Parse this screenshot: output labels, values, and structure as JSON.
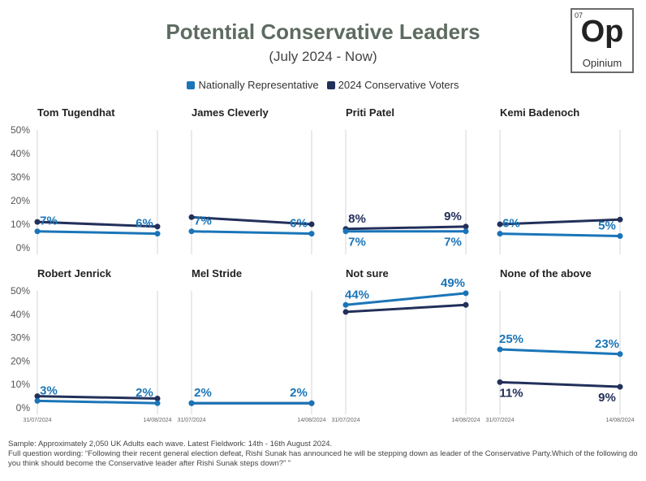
{
  "title": "Potential Conservative Leaders",
  "subtitle": "(July 2024 - Now)",
  "logo": {
    "number": "07",
    "symbol": "Op",
    "name": "Opinium"
  },
  "legend": [
    {
      "label": "Nationally Representative",
      "color": "#1a75b8"
    },
    {
      "label": "2024 Conservative Voters",
      "color": "#22305a"
    }
  ],
  "footer": {
    "sample": "Sample: Approximately 2,050 UK Adults each wave. Latest Fieldwork: 14th - 16th August 2024.",
    "wording": "Full question wording: “Following their recent general election defeat, Rishi Sunak has announced he will be stepping down as leader of the Conservative Party.Which of the following do you think should become the Conservative leader after Rishi Sunak steps down?” ”"
  },
  "chart_data": {
    "type": "line",
    "x": [
      "31/07/2024",
      "14/08/2024"
    ],
    "y_ticks": [
      "0%",
      "10%",
      "20%",
      "30%",
      "40%",
      "50%"
    ],
    "ylim": [
      0,
      50
    ],
    "grid": false,
    "legend_position": "top-center",
    "series_names": [
      "Nationally Representative",
      "2024 Conservative Voters"
    ],
    "colors": {
      "nat": "#1a75b8",
      "con": "#22305a"
    },
    "panels": [
      {
        "title": "Tom Tugendhat",
        "nat": {
          "values": [
            7,
            6
          ],
          "labels": [
            "7%",
            "6%"
          ]
        },
        "con": {
          "values": [
            11,
            9
          ],
          "labels": [
            "",
            ""
          ]
        }
      },
      {
        "title": "James Cleverly",
        "nat": {
          "values": [
            7,
            6
          ],
          "labels": [
            "7%",
            "6%"
          ]
        },
        "con": {
          "values": [
            13,
            10
          ],
          "labels": [
            "",
            ""
          ]
        }
      },
      {
        "title": "Priti Patel",
        "nat": {
          "values": [
            7,
            7
          ],
          "labels": [
            "7%",
            "7%"
          ]
        },
        "con": {
          "values": [
            8,
            9
          ],
          "labels": [
            "8%",
            "9%"
          ]
        }
      },
      {
        "title": "Kemi Badenoch",
        "nat": {
          "values": [
            6,
            5
          ],
          "labels": [
            "6%",
            "5%"
          ]
        },
        "con": {
          "values": [
            10,
            12
          ],
          "labels": [
            "",
            ""
          ]
        }
      },
      {
        "title": "Robert Jenrick",
        "nat": {
          "values": [
            3,
            2
          ],
          "labels": [
            "3%",
            "2%"
          ]
        },
        "con": {
          "values": [
            5,
            4
          ],
          "labels": [
            "",
            ""
          ]
        }
      },
      {
        "title": "Mel Stride",
        "nat": {
          "values": [
            2,
            2
          ],
          "labels": [
            "2%",
            "2%"
          ]
        },
        "con": {
          "values": [
            2,
            2
          ],
          "labels": [
            "",
            ""
          ]
        }
      },
      {
        "title": "Not sure",
        "nat": {
          "values": [
            44,
            49
          ],
          "labels": [
            "44%",
            "49%"
          ]
        },
        "con": {
          "values": [
            41,
            44
          ],
          "labels": [
            "",
            ""
          ]
        }
      },
      {
        "title": "None of the above",
        "nat": {
          "values": [
            25,
            23
          ],
          "labels": [
            "25%",
            "23%"
          ]
        },
        "con": {
          "values": [
            11,
            9
          ],
          "labels": [
            "11%",
            "9%"
          ]
        }
      }
    ]
  }
}
